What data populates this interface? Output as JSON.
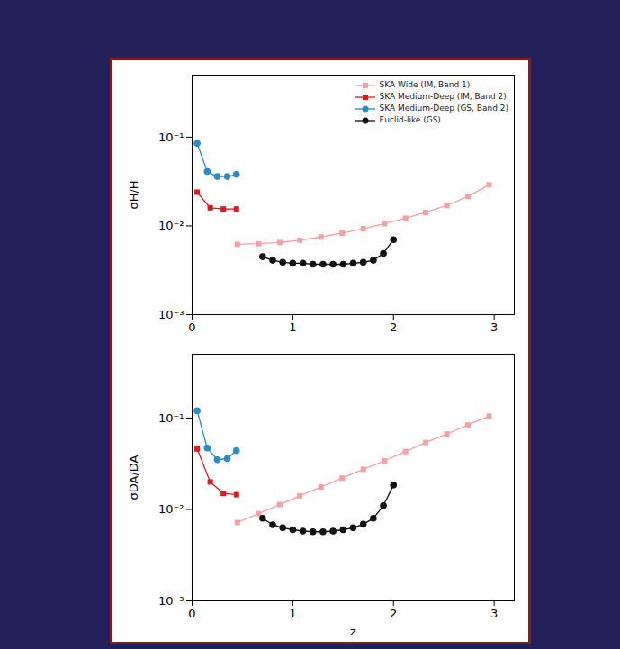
{
  "chart_data": [
    {
      "type": "line",
      "log": "y",
      "legend": "upper right",
      "y_label": "σH/H",
      "x_label": null,
      "xlim": [
        0,
        3.2
      ],
      "xticks": [
        0,
        1,
        2,
        3
      ],
      "ylim": [
        0.001,
        0.5
      ],
      "yticks": [
        {
          "value": 0.001,
          "label": "10⁻³"
        },
        {
          "value": 0.01,
          "label": "10⁻²"
        },
        {
          "value": 0.1,
          "label": "10⁻¹"
        }
      ],
      "series": [
        {
          "name": "SKA Wide (IM, Band 1)",
          "color": "#f4a0a5",
          "marker": "square",
          "x": [
            0.45,
            0.66,
            0.87,
            1.07,
            1.28,
            1.49,
            1.7,
            1.91,
            2.12,
            2.32,
            2.53,
            2.74,
            2.95
          ],
          "values": [
            0.0062,
            0.0063,
            0.0065,
            0.0069,
            0.0075,
            0.0083,
            0.0093,
            0.0106,
            0.0122,
            0.0142,
            0.017,
            0.0215,
            0.029
          ]
        },
        {
          "name": "SKA Medium-Deep (IM, Band 2)",
          "color": "#e0191e",
          "marker": "square",
          "x": [
            0.05,
            0.18,
            0.31,
            0.44
          ],
          "values": [
            0.024,
            0.016,
            0.0155,
            0.0155
          ]
        },
        {
          "name": "SKA Medium-Deep (GS, Band 2)",
          "color": "#2b8cc4",
          "marker": "circle",
          "x": [
            0.05,
            0.15,
            0.25,
            0.35,
            0.44
          ],
          "values": [
            0.085,
            0.041,
            0.036,
            0.036,
            0.038
          ]
        },
        {
          "name": "Euclid-like (GS)",
          "color": "#111111",
          "marker": "circle",
          "x": [
            0.7,
            0.8,
            0.9,
            1.0,
            1.1,
            1.2,
            1.3,
            1.4,
            1.5,
            1.6,
            1.7,
            1.8,
            1.9,
            2.0
          ],
          "values": [
            0.0045,
            0.0041,
            0.0039,
            0.0038,
            0.0038,
            0.0037,
            0.0037,
            0.0037,
            0.0037,
            0.0038,
            0.0039,
            0.0041,
            0.0049,
            0.007
          ]
        }
      ]
    },
    {
      "type": "line",
      "log": "y",
      "y_label": "σDA/DA",
      "x_label": "z",
      "xlim": [
        0,
        3.2
      ],
      "xticks": [
        0,
        1,
        2,
        3
      ],
      "ylim": [
        0.001,
        0.5
      ],
      "yticks": [
        {
          "value": 0.001,
          "label": "10⁻³"
        },
        {
          "value": 0.01,
          "label": "10⁻²"
        },
        {
          "value": 0.1,
          "label": "10⁻¹"
        }
      ],
      "series": [
        {
          "name": "SKA Wide (IM, Band 1)",
          "color": "#f4a0a5",
          "marker": "square",
          "x": [
            0.45,
            0.66,
            0.87,
            1.07,
            1.28,
            1.49,
            1.7,
            1.91,
            2.12,
            2.32,
            2.53,
            2.74,
            2.95
          ],
          "values": [
            0.0072,
            0.009,
            0.0113,
            0.0141,
            0.0176,
            0.022,
            0.0275,
            0.034,
            0.043,
            0.054,
            0.067,
            0.084,
            0.105
          ]
        },
        {
          "name": "SKA Medium-Deep (IM, Band 2)",
          "color": "#e0191e",
          "marker": "square",
          "x": [
            0.05,
            0.18,
            0.31,
            0.44
          ],
          "values": [
            0.046,
            0.02,
            0.015,
            0.0145
          ]
        },
        {
          "name": "SKA Medium-Deep (GS, Band 2)",
          "color": "#2b8cc4",
          "marker": "circle",
          "x": [
            0.05,
            0.15,
            0.25,
            0.35,
            0.44
          ],
          "values": [
            0.12,
            0.047,
            0.035,
            0.036,
            0.044
          ]
        },
        {
          "name": "Euclid-like (GS)",
          "color": "#111111",
          "marker": "circle",
          "x": [
            0.7,
            0.8,
            0.9,
            1.0,
            1.1,
            1.2,
            1.3,
            1.4,
            1.5,
            1.6,
            1.7,
            1.8,
            1.9,
            2.0
          ],
          "values": [
            0.008,
            0.0068,
            0.0063,
            0.006,
            0.0058,
            0.0057,
            0.0057,
            0.0058,
            0.006,
            0.0063,
            0.0069,
            0.008,
            0.011,
            0.0185
          ]
        }
      ]
    }
  ]
}
